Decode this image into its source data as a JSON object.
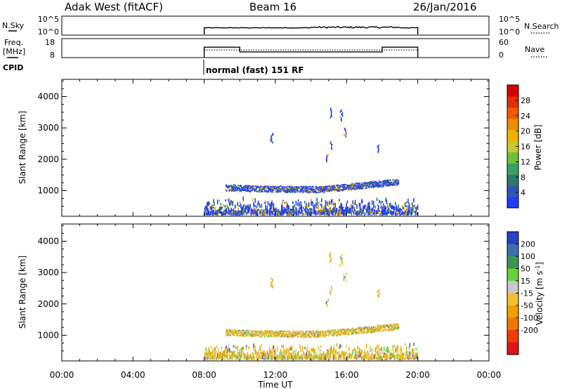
{
  "header": {
    "station": "Adak West (fitACF)",
    "beam": "Beam 16",
    "date": "26/Jan/2016"
  },
  "nsky_panel": {
    "left_label": "N.Sky",
    "left_ticks": [
      "10^5",
      "10^0"
    ],
    "right_ticks": [
      "10^5",
      "10^0"
    ],
    "right_label": "N.Search"
  },
  "freq_panel": {
    "left_label_line1": "Freq.",
    "left_label_line2": "[MHz]",
    "left_ticks": [
      "18",
      "8"
    ],
    "right_ticks": [
      "60",
      "0"
    ],
    "right_label": "Nave"
  },
  "cpid": {
    "label": "CPID",
    "text": "normal (fast) 151 RF"
  },
  "x_axis": {
    "label": "Time UT",
    "ticks": [
      "00:00",
      "04:00",
      "08:00",
      "12:00",
      "16:00",
      "20:00",
      "00:00"
    ],
    "range_hours": [
      0,
      24
    ]
  },
  "chart_data": [
    {
      "type": "heatmap",
      "name": "power",
      "ylabel": "Slant Range [km]",
      "yticks": [
        "1000",
        "2000",
        "3000",
        "4000"
      ],
      "ylim": [
        180,
        4550
      ],
      "xlim": [
        0,
        24
      ],
      "data_window_hours": [
        8,
        20
      ],
      "colorbar": {
        "label": "Power [dB]",
        "ticks": [
          "4",
          "8",
          "12",
          "16",
          "20",
          "24",
          "28"
        ],
        "range": [
          0,
          32
        ],
        "colors": [
          "#1f3cff",
          "#2f55b8",
          "#2f7a6a",
          "#3aa064",
          "#6cc23a",
          "#c8c832",
          "#f0b400",
          "#f08c00",
          "#f05a00",
          "#e62d00",
          "#d80000"
        ]
      }
    },
    {
      "type": "heatmap",
      "name": "velocity",
      "ylabel": "Slant Range [km]",
      "yticks": [
        "1000",
        "2000",
        "3000",
        "4000"
      ],
      "ylim": [
        180,
        4550
      ],
      "xlim": [
        0,
        24
      ],
      "data_window_hours": [
        8,
        20
      ],
      "colorbar": {
        "label": "Velocity [m s-1]",
        "ticks": [
          "200",
          "100",
          "50",
          "15",
          "-15",
          "-50",
          "-100",
          "-200"
        ],
        "colors": [
          "#2a3fc8",
          "#3c6eb4",
          "#3c9650",
          "#6ad03a",
          "#c8c8c8",
          "#f0c030",
          "#f0a000",
          "#f07800",
          "#f03c00",
          "#e01414"
        ]
      }
    }
  ]
}
